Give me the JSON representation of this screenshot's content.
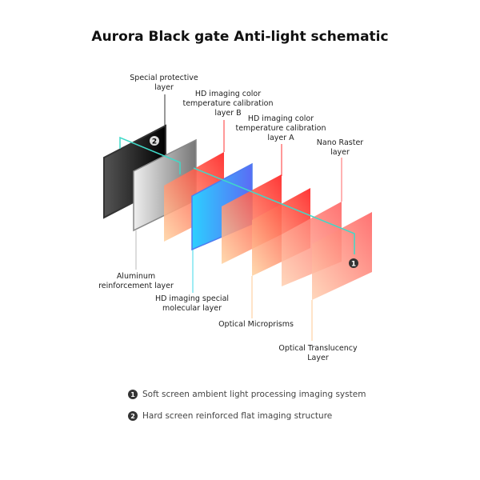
{
  "title": "Aurora Black gate Anti-light schematic",
  "labels": {
    "special_protective": [
      "Special protective",
      "layer"
    ],
    "calibration_b": [
      "HD imaging color",
      "temperature calibration",
      "layer  B"
    ],
    "calibration_a": [
      "HD imaging color",
      "temperature calibration",
      "layer  A"
    ],
    "nano_raster": [
      "Nano Raster",
      "layer"
    ],
    "aluminum": [
      "Aluminum",
      "reinforcement layer"
    ],
    "molecular": [
      "HD imaging special",
      "molecular layer"
    ],
    "microprisms": [
      "Optical Microprisms"
    ],
    "translucency": [
      "Optical Translucency",
      "Layer"
    ]
  },
  "markers": {
    "one": "1",
    "two": "2"
  },
  "legend": [
    {
      "num": "1",
      "text": "Soft screen ambient light processing imaging system"
    },
    {
      "num": "2",
      "text": "Hard screen reinforced flat imaging structure"
    }
  ],
  "colors": {
    "cyan_path": "#3fd9c8",
    "blue_layer": "#3a8cff",
    "red_layer": "#ff2a2a",
    "peach_layer": "#ffc890"
  }
}
